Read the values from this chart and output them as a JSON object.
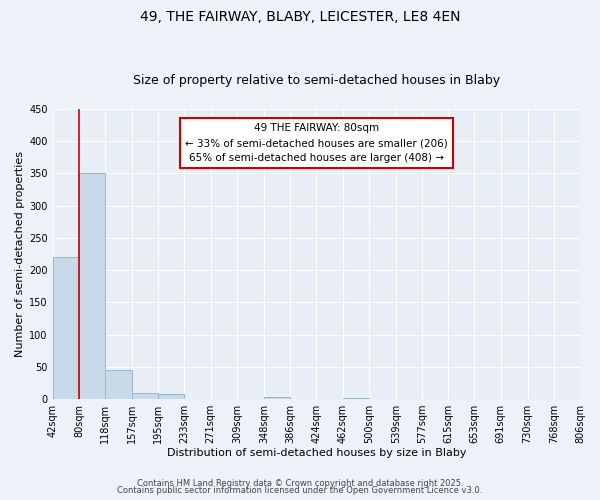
{
  "title": "49, THE FAIRWAY, BLABY, LEICESTER, LE8 4EN",
  "subtitle": "Size of property relative to semi-detached houses in Blaby",
  "xlabel": "Distribution of semi-detached houses by size in Blaby",
  "ylabel": "Number of semi-detached properties",
  "bar_edges": [
    42,
    80,
    118,
    157,
    195,
    233,
    271,
    309,
    348,
    386,
    424,
    462,
    500,
    539,
    577,
    615,
    653,
    691,
    730,
    768,
    806
  ],
  "bar_heights": [
    220,
    350,
    45,
    10,
    7,
    0,
    0,
    0,
    3,
    0,
    0,
    1,
    0,
    0,
    0,
    0,
    0,
    0,
    0,
    0
  ],
  "bar_color": "#c8d9ea",
  "bar_edge_color": "#9ab5cc",
  "property_line_x": 80,
  "property_line_color": "#cc0000",
  "annotation_title": "49 THE FAIRWAY: 80sqm",
  "annotation_line1": "← 33% of semi-detached houses are smaller (206)",
  "annotation_line2": "65% of semi-detached houses are larger (408) →",
  "annotation_box_color": "#cc0000",
  "ylim": [
    0,
    450
  ],
  "yticks": [
    0,
    50,
    100,
    150,
    200,
    250,
    300,
    350,
    400,
    450
  ],
  "tick_labels": [
    "42sqm",
    "80sqm",
    "118sqm",
    "157sqm",
    "195sqm",
    "233sqm",
    "271sqm",
    "309sqm",
    "348sqm",
    "386sqm",
    "424sqm",
    "462sqm",
    "500sqm",
    "539sqm",
    "577sqm",
    "615sqm",
    "653sqm",
    "691sqm",
    "730sqm",
    "768sqm",
    "806sqm"
  ],
  "footer1": "Contains HM Land Registry data © Crown copyright and database right 2025.",
  "footer2": "Contains public sector information licensed under the Open Government Licence v3.0.",
  "bg_color": "#edf2f8",
  "plot_bg_color": "#e8eef5",
  "grid_color": "#ffffff",
  "title_fontsize": 10,
  "subtitle_fontsize": 9,
  "axis_label_fontsize": 8,
  "tick_fontsize": 7,
  "footer_fontsize": 6,
  "annotation_fontsize": 7.5
}
